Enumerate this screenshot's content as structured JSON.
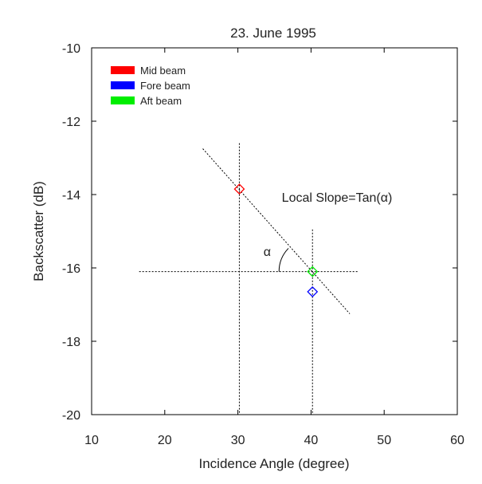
{
  "chart_data": {
    "type": "scatter",
    "title": "23. June 1995",
    "xlabel": "Incidence Angle (degree)",
    "ylabel": "Backscatter (dB)",
    "xlim": [
      10,
      60
    ],
    "ylim": [
      -20,
      -10
    ],
    "xticks": [
      10,
      20,
      30,
      40,
      50,
      60
    ],
    "yticks": [
      -10,
      -12,
      -14,
      -16,
      -18,
      -20
    ],
    "grid": false,
    "legend_position": "top-left",
    "series": [
      {
        "name": "Mid beam",
        "color": "#ff0000",
        "marker": "diamond",
        "points": [
          [
            30.2,
            -13.85
          ]
        ]
      },
      {
        "name": "Fore beam",
        "color": "#0000ff",
        "marker": "diamond",
        "points": [
          [
            40.2,
            -16.65
          ]
        ]
      },
      {
        "name": "Aft beam",
        "color": "#00ee00",
        "marker": "diamond",
        "points": [
          [
            40.2,
            -16.1
          ]
        ]
      }
    ],
    "reference_lines": [
      {
        "kind": "slope",
        "x": [
          25.2,
          45.3
        ],
        "y": [
          -12.75,
          -17.25
        ]
      },
      {
        "kind": "vertical",
        "x": [
          30.2,
          30.2
        ],
        "y": [
          -12.6,
          -20
        ]
      },
      {
        "kind": "vertical",
        "x": [
          40.2,
          40.2
        ],
        "y": [
          -14.95,
          -20
        ]
      },
      {
        "kind": "horizontal",
        "x": [
          16.5,
          46.5
        ],
        "y": [
          -16.1,
          -16.1
        ]
      }
    ],
    "angle_arc": {
      "cx": 40.2,
      "cy": -16.1,
      "from_deg": 180,
      "to_deg": 136
    },
    "annotations": [
      {
        "text": "Local Slope=Tan(α)",
        "x": 36,
        "y": -14.2
      },
      {
        "text": "α",
        "x": 33.5,
        "y": -15.67
      }
    ]
  }
}
